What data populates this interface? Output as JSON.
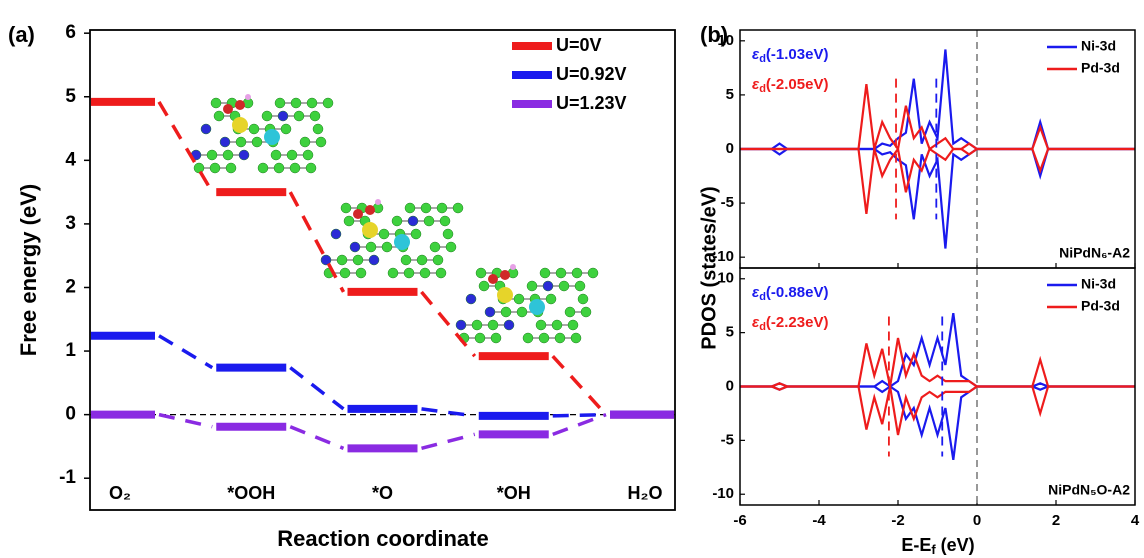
{
  "chart_data": [
    {
      "type": "step",
      "panel_label": "(a)",
      "xlabel": "Reaction coordinate",
      "ylabel": "Free energy (eV)",
      "categories": [
        "O₂",
        "*OOH",
        "*O",
        "*OH",
        "H₂O"
      ],
      "ylim": [
        -1.5,
        6.05
      ],
      "yticks": [
        -1,
        0,
        1,
        2,
        3,
        4,
        5,
        6
      ],
      "legend": "upper right",
      "series": [
        {
          "name": "U=0V",
          "color": "#ee1c1c",
          "values": [
            4.92,
            3.5,
            1.93,
            0.92,
            0
          ]
        },
        {
          "name": "U=0.92V",
          "color": "#1a1aee",
          "values": [
            1.24,
            0.74,
            0.09,
            -0.02,
            0
          ]
        },
        {
          "name": "U=1.23V",
          "color": "#8a2be2",
          "values": [
            0,
            -0.19,
            -0.53,
            -0.31,
            0
          ]
        }
      ]
    },
    {
      "type": "line",
      "panel_label": "(b)",
      "ylabel": "PDOS (states/eV)",
      "label": "NiPdN₆-A2",
      "xlim": [
        -6,
        4
      ],
      "ylim": [
        -11,
        11
      ],
      "yticks": [
        -10,
        -5,
        0,
        5,
        10
      ],
      "legend": "upper right",
      "x": [
        -6,
        -5.2,
        -5,
        -4.8,
        -3,
        -2.8,
        -2.6,
        -2.4,
        -2.2,
        -2,
        -1.8,
        -1.6,
        -1.4,
        -1.2,
        -1,
        -0.8,
        -0.6,
        -0.4,
        -0.2,
        0,
        0.2,
        1.4,
        1.6,
        1.8,
        4
      ],
      "series": [
        {
          "name": "Ni-3d",
          "color": "#1a1aee",
          "values": [
            0,
            0,
            0.5,
            0,
            0,
            0,
            0,
            0.5,
            0.3,
            1,
            1.5,
            6.5,
            0.5,
            2.5,
            1,
            9.2,
            0.5,
            1,
            0.5,
            0,
            0,
            0,
            2.5,
            0,
            0
          ],
          "values_down": [
            0,
            0,
            -0.5,
            0,
            0,
            0,
            0,
            -0.5,
            -0.3,
            -1,
            -1.5,
            -6.5,
            -0.5,
            -2.5,
            -1,
            -9.2,
            -0.5,
            -1,
            -0.5,
            0,
            0,
            0,
            -2.5,
            0,
            0
          ]
        },
        {
          "name": "Pd-3d",
          "color": "#ee1c1c",
          "values": [
            0,
            0,
            0,
            0,
            0,
            6,
            0,
            2.5,
            1,
            0,
            4,
            1,
            2,
            0,
            0.5,
            1,
            0,
            0,
            0.5,
            0,
            0,
            0,
            2,
            0,
            0
          ],
          "values_down": [
            0,
            0,
            0,
            0,
            0,
            -6,
            0,
            -2.5,
            -1,
            0,
            -4,
            -1,
            -2,
            0,
            -0.5,
            -1,
            0,
            0,
            -0.5,
            0,
            0,
            0,
            -2,
            0,
            0
          ]
        }
      ],
      "d_band_centers": [
        {
          "symbol": "ε",
          "sub": "d",
          "label": "(-1.03eV)",
          "value": -1.03,
          "color": "#1a1aee"
        },
        {
          "symbol": "ε",
          "sub": "d",
          "label": "(-2.05eV)",
          "value": -2.05,
          "color": "#ee1c1c"
        }
      ]
    },
    {
      "type": "line",
      "label": "NiPdN₅O-A2",
      "xlabel": "E-E",
      "xlabel_sub": "f",
      "xlabel_unit": "(eV)",
      "xlim": [
        -6,
        4
      ],
      "xticks": [
        -6,
        -4,
        -2,
        0,
        2,
        4
      ],
      "ylim": [
        -11,
        11
      ],
      "yticks": [
        -10,
        -5,
        0,
        5,
        10
      ],
      "legend": "upper right",
      "x": [
        -6,
        -5.2,
        -5,
        -4.8,
        -3,
        -2.8,
        -2.6,
        -2.4,
        -2.2,
        -2,
        -1.8,
        -1.6,
        -1.4,
        -1.2,
        -1,
        -0.8,
        -0.6,
        -0.4,
        -0.2,
        0,
        0.2,
        1.4,
        1.6,
        1.8,
        4
      ],
      "series": [
        {
          "name": "Ni-3d",
          "color": "#1a1aee",
          "values": [
            0,
            0,
            0.3,
            0,
            0,
            0,
            0,
            0.5,
            0,
            0.5,
            3,
            2,
            4.5,
            2,
            4.5,
            2,
            6.8,
            1,
            0.5,
            0,
            0,
            0,
            0.3,
            0,
            0
          ],
          "values_down": [
            0,
            0,
            -0.3,
            0,
            0,
            0,
            0,
            -0.5,
            0,
            -0.5,
            -3,
            -2,
            -4.5,
            -2,
            -4.5,
            -2,
            -6.8,
            -1,
            -0.5,
            0,
            0,
            0,
            -0.3,
            0,
            0
          ]
        },
        {
          "name": "Pd-3d",
          "color": "#ee1c1c",
          "values": [
            0,
            0,
            0.3,
            0,
            0,
            4,
            1,
            3.5,
            0,
            4.5,
            1,
            3,
            1,
            0.5,
            1,
            0.5,
            0.5,
            0.5,
            0.5,
            0,
            0,
            0,
            2.5,
            0,
            0
          ],
          "values_down": [
            0,
            0,
            -0.3,
            0,
            0,
            -4,
            -1,
            -3.5,
            0,
            -4.5,
            -1,
            -3,
            -1,
            -0.5,
            -1,
            -0.5,
            -0.5,
            -0.5,
            -0.5,
            0,
            0,
            0,
            -2.5,
            0,
            0
          ]
        }
      ],
      "d_band_centers": [
        {
          "symbol": "ε",
          "sub": "d",
          "label": "(-0.88eV)",
          "value": -0.88,
          "color": "#1a1aee"
        },
        {
          "symbol": "ε",
          "sub": "d",
          "label": "(-2.23eV)",
          "value": -2.23,
          "color": "#ee1c1c"
        }
      ]
    }
  ]
}
